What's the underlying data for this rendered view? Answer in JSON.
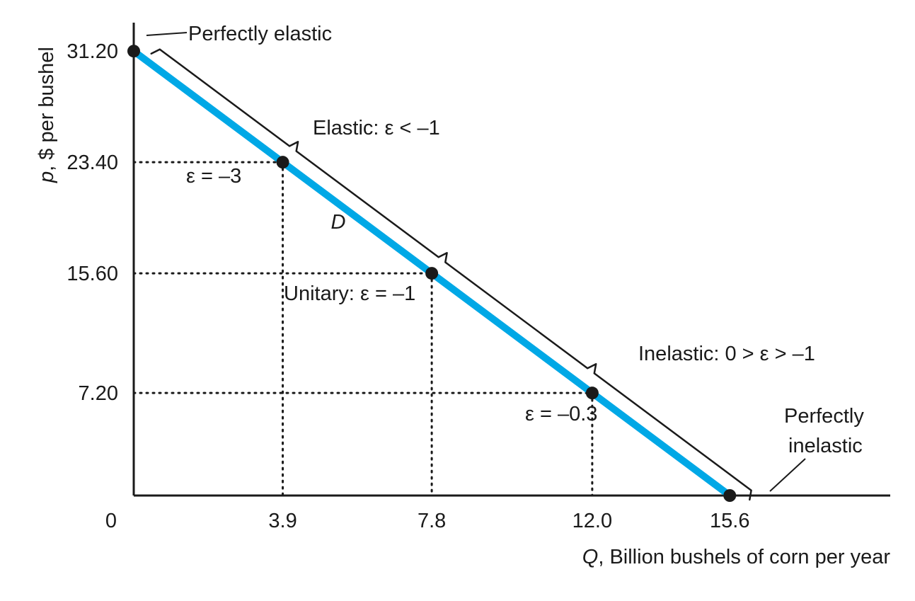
{
  "chart_data": {
    "type": "line",
    "xlabel_var": "Q",
    "xlabel_rest": ", Billion bushels of corn per year",
    "ylabel_var": "p",
    "ylabel_rest": ", $ per bushel",
    "origin_label": "0",
    "xlim": [
      0,
      19.8
    ],
    "ylim": [
      0,
      33.2
    ],
    "x_ticks": [
      {
        "value": 3.9,
        "label": "3.9"
      },
      {
        "value": 7.8,
        "label": "7.8"
      },
      {
        "value": 12.0,
        "label": "12.0"
      },
      {
        "value": 15.6,
        "label": "15.6"
      }
    ],
    "y_ticks": [
      {
        "value": 7.2,
        "label": "7.20"
      },
      {
        "value": 15.6,
        "label": "15.60"
      },
      {
        "value": 23.4,
        "label": "23.40"
      },
      {
        "value": 31.2,
        "label": "31.20"
      }
    ],
    "series": [
      {
        "name": "D",
        "color": "#00a8e6",
        "points": [
          [
            0,
            31.2
          ],
          [
            15.6,
            0
          ]
        ]
      }
    ],
    "marked_points": [
      {
        "x": 0,
        "y": 31.2
      },
      {
        "x": 3.9,
        "y": 23.4
      },
      {
        "x": 7.8,
        "y": 15.6
      },
      {
        "x": 12.0,
        "y": 7.2
      },
      {
        "x": 15.6,
        "y": 0
      }
    ],
    "guide_points": [
      {
        "x": 3.9,
        "y": 23.4
      },
      {
        "x": 7.8,
        "y": 15.6
      },
      {
        "x": 12.0,
        "y": 7.2
      }
    ],
    "annotations": {
      "perfectly_elastic": "Perfectly elastic",
      "elastic": "Elastic: ε < –1",
      "eps_minus_3": "ε = –3",
      "curve_label": "D",
      "unitary": "Unitary: ε = –1",
      "inelastic": "Inelastic: 0 > ε > –1",
      "eps_minus_03": "ε = –0.3",
      "perfectly_inelastic_1": "Perfectly",
      "perfectly_inelastic_2": "inelastic"
    }
  }
}
